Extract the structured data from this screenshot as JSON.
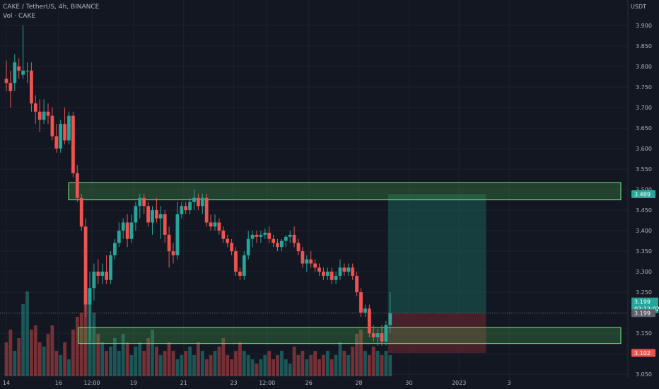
{
  "header": {
    "title": "CAKE / TetherUS, 4h, BINANCE",
    "volume_label": "Vol · CAKE",
    "currency": "USDT"
  },
  "colors": {
    "background": "#131722",
    "bull": "#26a69a",
    "bear": "#ef5350",
    "zone": "#4caf50",
    "target_fill": "#1b5e55",
    "stop_fill": "#6b2630"
  },
  "chart_data": {
    "type": "candlestick",
    "title": "CAKE / TetherUS, 4h, BINANCE",
    "ylim": [
      3.04,
      3.95
    ],
    "y_ticks": [
      "3.900",
      "3.850",
      "3.800",
      "3.750",
      "3.700",
      "3.650",
      "3.600",
      "3.550",
      "3.500",
      "3.450",
      "3.400",
      "3.350",
      "3.300",
      "3.250",
      "3.200",
      "3.150",
      "3.100",
      "3.050"
    ],
    "x_ticks": [
      {
        "label": "14",
        "i": 0
      },
      {
        "label": "16",
        "i": 12.5
      },
      {
        "label": "12:00",
        "i": 20.5
      },
      {
        "label": "19",
        "i": 30.5
      },
      {
        "label": "21",
        "i": 42.5
      },
      {
        "label": "23",
        "i": 54.5
      },
      {
        "label": "12:00",
        "i": 62.5
      },
      {
        "label": "26",
        "i": 72.5
      },
      {
        "label": "28",
        "i": 84.5
      },
      {
        "label": "30",
        "i": 96.5
      },
      {
        "label": "2023",
        "i": 108.5
      },
      {
        "label": "3",
        "i": 120.5
      }
    ],
    "ohlc": [
      [
        3.77,
        3.815,
        3.74,
        3.76
      ],
      [
        3.76,
        3.79,
        3.7,
        3.74
      ],
      [
        3.76,
        3.83,
        3.74,
        3.81
      ],
      [
        3.8,
        3.82,
        3.77,
        3.79
      ],
      [
        3.78,
        3.9,
        3.77,
        3.79
      ],
      [
        3.79,
        3.81,
        3.76,
        3.79
      ],
      [
        3.79,
        3.81,
        3.69,
        3.71
      ],
      [
        3.71,
        3.73,
        3.66,
        3.69
      ],
      [
        3.69,
        3.72,
        3.64,
        3.67
      ],
      [
        3.67,
        3.72,
        3.66,
        3.69
      ],
      [
        3.69,
        3.71,
        3.66,
        3.68
      ],
      [
        3.68,
        3.7,
        3.62,
        3.63
      ],
      [
        3.63,
        3.66,
        3.59,
        3.6
      ],
      [
        3.6,
        3.67,
        3.59,
        3.66
      ],
      [
        3.66,
        3.7,
        3.61,
        3.62
      ],
      [
        3.62,
        3.69,
        3.61,
        3.68
      ],
      [
        3.68,
        3.69,
        3.53,
        3.54
      ],
      [
        3.54,
        3.56,
        3.47,
        3.48
      ],
      [
        3.48,
        3.49,
        3.4,
        3.41
      ],
      [
        3.41,
        3.43,
        3.19,
        3.22
      ],
      [
        3.22,
        3.3,
        3.13,
        3.26
      ],
      [
        3.26,
        3.32,
        3.23,
        3.3
      ],
      [
        3.3,
        3.33,
        3.27,
        3.29
      ],
      [
        3.29,
        3.32,
        3.27,
        3.3
      ],
      [
        3.3,
        3.34,
        3.27,
        3.28
      ],
      [
        3.28,
        3.35,
        3.27,
        3.34
      ],
      [
        3.34,
        3.38,
        3.33,
        3.37
      ],
      [
        3.37,
        3.42,
        3.36,
        3.4
      ],
      [
        3.4,
        3.43,
        3.38,
        3.42
      ],
      [
        3.42,
        3.44,
        3.36,
        3.38
      ],
      [
        3.38,
        3.44,
        3.37,
        3.42
      ],
      [
        3.42,
        3.47,
        3.4,
        3.46
      ],
      [
        3.46,
        3.49,
        3.43,
        3.48
      ],
      [
        3.48,
        3.49,
        3.44,
        3.46
      ],
      [
        3.46,
        3.47,
        3.41,
        3.42
      ],
      [
        3.42,
        3.46,
        3.39,
        3.45
      ],
      [
        3.45,
        3.48,
        3.42,
        3.43
      ],
      [
        3.43,
        3.46,
        3.38,
        3.44
      ],
      [
        3.44,
        3.45,
        3.37,
        3.39
      ],
      [
        3.39,
        3.41,
        3.31,
        3.35
      ],
      [
        3.35,
        3.37,
        3.32,
        3.34
      ],
      [
        3.34,
        3.47,
        3.33,
        3.44
      ],
      [
        3.44,
        3.47,
        3.43,
        3.46
      ],
      [
        3.46,
        3.47,
        3.44,
        3.45
      ],
      [
        3.45,
        3.48,
        3.44,
        3.47
      ],
      [
        3.47,
        3.5,
        3.45,
        3.48
      ],
      [
        3.48,
        3.49,
        3.45,
        3.46
      ],
      [
        3.46,
        3.49,
        3.44,
        3.48
      ],
      [
        3.48,
        3.49,
        3.41,
        3.42
      ],
      [
        3.42,
        3.44,
        3.4,
        3.41
      ],
      [
        3.41,
        3.44,
        3.4,
        3.42
      ],
      [
        3.42,
        3.43,
        3.39,
        3.4
      ],
      [
        3.4,
        3.41,
        3.37,
        3.38
      ],
      [
        3.38,
        3.39,
        3.36,
        3.37
      ],
      [
        3.37,
        3.38,
        3.34,
        3.35
      ],
      [
        3.35,
        3.36,
        3.29,
        3.3
      ],
      [
        3.3,
        3.31,
        3.28,
        3.29
      ],
      [
        3.29,
        3.35,
        3.28,
        3.34
      ],
      [
        3.34,
        3.4,
        3.33,
        3.38
      ],
      [
        3.38,
        3.4,
        3.36,
        3.39
      ],
      [
        3.39,
        3.4,
        3.37,
        3.385
      ],
      [
        3.385,
        3.4,
        3.37,
        3.39
      ],
      [
        3.39,
        3.405,
        3.38,
        3.395
      ],
      [
        3.395,
        3.41,
        3.37,
        3.38
      ],
      [
        3.38,
        3.39,
        3.36,
        3.37
      ],
      [
        3.37,
        3.38,
        3.35,
        3.36
      ],
      [
        3.36,
        3.38,
        3.35,
        3.375
      ],
      [
        3.375,
        3.39,
        3.36,
        3.385
      ],
      [
        3.385,
        3.4,
        3.37,
        3.39
      ],
      [
        3.39,
        3.41,
        3.36,
        3.37
      ],
      [
        3.37,
        3.38,
        3.34,
        3.35
      ],
      [
        3.35,
        3.36,
        3.31,
        3.32
      ],
      [
        3.32,
        3.34,
        3.3,
        3.33
      ],
      [
        3.33,
        3.35,
        3.31,
        3.32
      ],
      [
        3.32,
        3.33,
        3.3,
        3.31
      ],
      [
        3.31,
        3.32,
        3.29,
        3.3
      ],
      [
        3.3,
        3.31,
        3.28,
        3.29
      ],
      [
        3.29,
        3.31,
        3.28,
        3.3
      ],
      [
        3.3,
        3.31,
        3.27,
        3.28
      ],
      [
        3.28,
        3.3,
        3.27,
        3.29
      ],
      [
        3.29,
        3.33,
        3.28,
        3.31
      ],
      [
        3.31,
        3.32,
        3.29,
        3.3
      ],
      [
        3.3,
        3.32,
        3.29,
        3.31
      ],
      [
        3.31,
        3.32,
        3.28,
        3.29
      ],
      [
        3.29,
        3.3,
        3.24,
        3.25
      ],
      [
        3.25,
        3.26,
        3.19,
        3.2
      ],
      [
        3.2,
        3.22,
        3.19,
        3.21
      ],
      [
        3.21,
        3.22,
        3.14,
        3.15
      ],
      [
        3.15,
        3.17,
        3.13,
        3.14
      ],
      [
        3.14,
        3.16,
        3.12,
        3.15
      ],
      [
        3.15,
        3.17,
        3.12,
        3.13
      ],
      [
        3.13,
        3.18,
        3.12,
        3.17
      ],
      [
        3.17,
        3.25,
        3.15,
        3.199
      ]
    ],
    "volume": [
      0.4,
      0.55,
      0.3,
      0.45,
      0.85,
      1.0,
      0.55,
      0.6,
      0.4,
      0.35,
      0.5,
      0.6,
      0.3,
      0.25,
      0.4,
      0.2,
      0.55,
      0.7,
      0.75,
      0.95,
      1.0,
      0.75,
      0.5,
      0.4,
      0.3,
      0.35,
      0.45,
      0.3,
      0.5,
      0.4,
      0.25,
      0.35,
      0.4,
      0.3,
      0.45,
      0.55,
      0.35,
      0.25,
      0.3,
      0.4,
      0.3,
      0.2,
      0.25,
      0.3,
      0.35,
      0.25,
      0.4,
      0.3,
      0.2,
      0.25,
      0.3,
      0.35,
      0.45,
      0.25,
      0.2,
      0.3,
      0.4,
      0.3,
      0.25,
      0.2,
      0.15,
      0.2,
      0.25,
      0.3,
      0.2,
      0.25,
      0.3,
      0.2,
      0.15,
      0.35,
      0.25,
      0.3,
      0.2,
      0.25,
      0.3,
      0.2,
      0.25,
      0.3,
      0.2,
      0.25,
      0.4,
      0.3,
      0.25,
      0.35,
      0.5,
      0.55,
      0.3,
      0.25,
      0.35,
      0.3,
      0.25,
      0.3,
      0.25
    ],
    "zones": [
      {
        "top": 3.517,
        "bottom": 3.475
      },
      {
        "top": 3.164,
        "bottom": 3.125
      }
    ],
    "position": {
      "entry": 3.199,
      "target": 3.489,
      "stop": 3.102,
      "start_i": 92,
      "end_i": 115
    },
    "price_labels": {
      "target": "3.489",
      "current": "3.199",
      "countdown": "02:12:02",
      "entry_line": "3.199",
      "stop": "3.102"
    }
  }
}
